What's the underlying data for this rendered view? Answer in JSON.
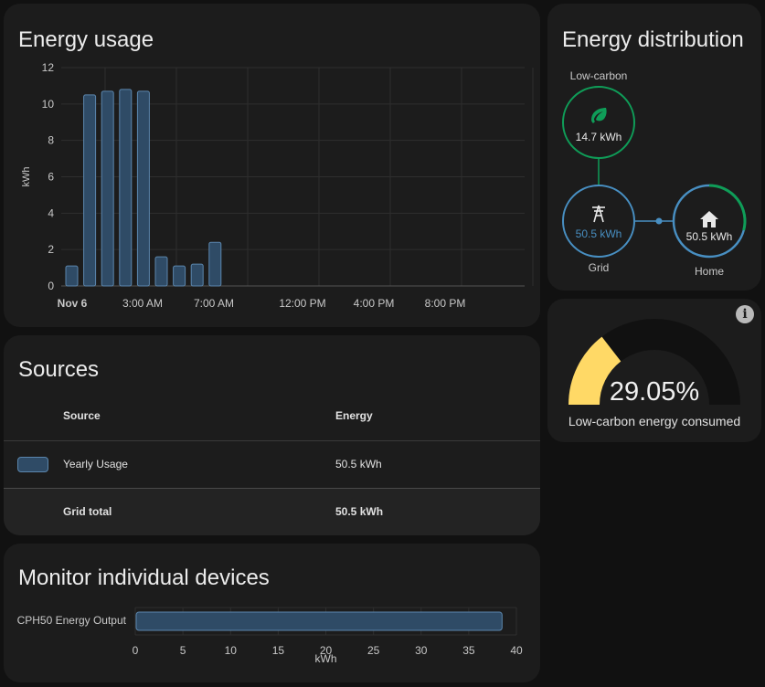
{
  "usage": {
    "title": "Energy usage",
    "chart_data": {
      "type": "bar",
      "ylabel": "kWh",
      "ylim": [
        0,
        12
      ],
      "yticks": [
        0,
        2,
        4,
        6,
        8,
        10,
        12
      ],
      "xtick_labels": [
        "Nov 6",
        "3:00 AM",
        "7:00 AM",
        "12:00 PM",
        "4:00 PM",
        "8:00 PM"
      ],
      "hours": [
        0,
        1,
        2,
        3,
        4,
        5,
        6,
        7,
        8
      ],
      "values": [
        1.1,
        10.5,
        10.7,
        10.8,
        10.7,
        1.6,
        1.1,
        1.2,
        2.4
      ],
      "grid": true,
      "bar_color": "#2f4b66",
      "bar_border": "#5b86ad"
    }
  },
  "distribution": {
    "title": "Energy distribution",
    "low_carbon": {
      "label": "Low-carbon",
      "value": "14.7 kWh",
      "color": "#0f9d58"
    },
    "grid": {
      "label": "Grid",
      "value": "50.5 kWh",
      "color": "#488fc2"
    },
    "home": {
      "label": "Home",
      "value": "50.5 kWh"
    }
  },
  "gauge": {
    "value_text": "29.05%",
    "value": 29.05,
    "label": "Low-carbon energy consumed",
    "fill_color": "#ffd966",
    "track_color": "#111111"
  },
  "sources": {
    "title": "Sources",
    "headers": {
      "source": "Source",
      "energy": "Energy"
    },
    "rows": [
      {
        "name": "Yearly Usage",
        "energy": "50.5 kWh"
      }
    ],
    "total": {
      "name": "Grid total",
      "energy": "50.5 kWh"
    }
  },
  "devices": {
    "title": "Monitor individual devices",
    "chart_data": {
      "type": "bar",
      "orientation": "horizontal",
      "categories": [
        "CPH50 Energy Output"
      ],
      "values": [
        38.4
      ],
      "xlim": [
        0,
        40
      ],
      "xticks": [
        0,
        5,
        10,
        15,
        20,
        25,
        30,
        35,
        40
      ],
      "xlabel": "kWh",
      "grid": true
    }
  }
}
